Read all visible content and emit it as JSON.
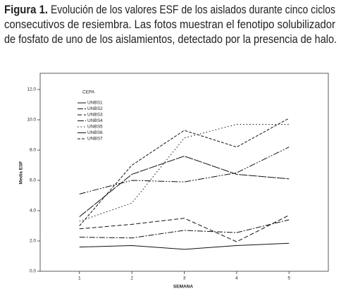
{
  "figure_label": "Figura 1.",
  "caption": [
    "Evolución de los valores ESF de los aislados durante cinco ciclos",
    "consecutivos de resiembra. Las fotos muestran el fenotipo solubilizador",
    "de fosfato de uno de los aislamientos, detectado por la presencia de halo."
  ],
  "chart_data": {
    "type": "line",
    "x_label": "SEMANA",
    "y_label": "Media ESF",
    "legend_title": "CEPA",
    "legend": "top-left",
    "x": [
      1,
      2,
      3,
      4,
      5
    ],
    "xlim": [
      0.25,
      5.75
    ],
    "xticks": [
      1,
      2,
      3,
      4,
      5
    ],
    "ylim": [
      0,
      13.07
    ],
    "yticks": [
      {
        "value": 0,
        "label": "0.0"
      },
      {
        "value": 2,
        "label": "2.0"
      },
      {
        "value": 4,
        "label": "4.0"
      },
      {
        "value": 6,
        "label": "6.0"
      },
      {
        "value": 8,
        "label": "8.0"
      },
      {
        "value": 10,
        "label": "10.0"
      },
      {
        "value": 12,
        "label": "12.0"
      }
    ],
    "series": [
      {
        "name": "UNBS1",
        "color": "#111",
        "dash": "none",
        "values": [
          1.6,
          1.7,
          1.45,
          1.7,
          1.85
        ]
      },
      {
        "name": "UNBS2",
        "color": "#111",
        "dash": "8 2 2 2",
        "values": [
          2.25,
          2.2,
          2.7,
          2.55,
          3.4
        ]
      },
      {
        "name": "UNBS3",
        "color": "#111",
        "dash": "6 3",
        "values": [
          2.8,
          3.1,
          3.5,
          1.95,
          3.7
        ]
      },
      {
        "name": "UNBS4",
        "color": "#111",
        "dash": "9 2 2 2 2 2",
        "values": [
          5.1,
          6.0,
          5.9,
          6.5,
          8.2
        ]
      },
      {
        "name": "UNBS5",
        "color": "#111",
        "dash": "1.5 3",
        "values": [
          3.3,
          4.5,
          8.8,
          9.7,
          9.7
        ]
      },
      {
        "name": "UNBS6",
        "color": "#111",
        "dash": "12 1.5",
        "values": [
          3.6,
          6.4,
          7.6,
          6.4,
          6.1
        ]
      },
      {
        "name": "UNBS7",
        "color": "#111",
        "dash": "4 2",
        "values": [
          3.0,
          7.0,
          9.3,
          8.2,
          10.1
        ]
      }
    ]
  }
}
